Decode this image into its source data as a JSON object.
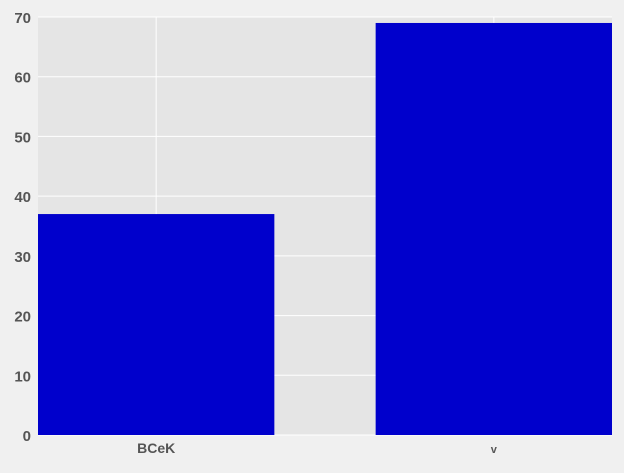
{
  "chart_data": {
    "type": "bar",
    "title": "",
    "xlabel": "",
    "ylabel": "",
    "categories": [
      "BCeK",
      "v"
    ],
    "values": [
      37,
      69
    ],
    "ylim": [
      0,
      70
    ],
    "yticks": [
      0,
      10,
      20,
      30,
      40,
      50,
      60,
      70
    ],
    "grid": true,
    "colors": {
      "background": "#f0f0f0",
      "plot_area": "#e5e5e5",
      "grid": "#ffffff",
      "bar": "#0000cc",
      "tick_text": "#555555"
    }
  }
}
